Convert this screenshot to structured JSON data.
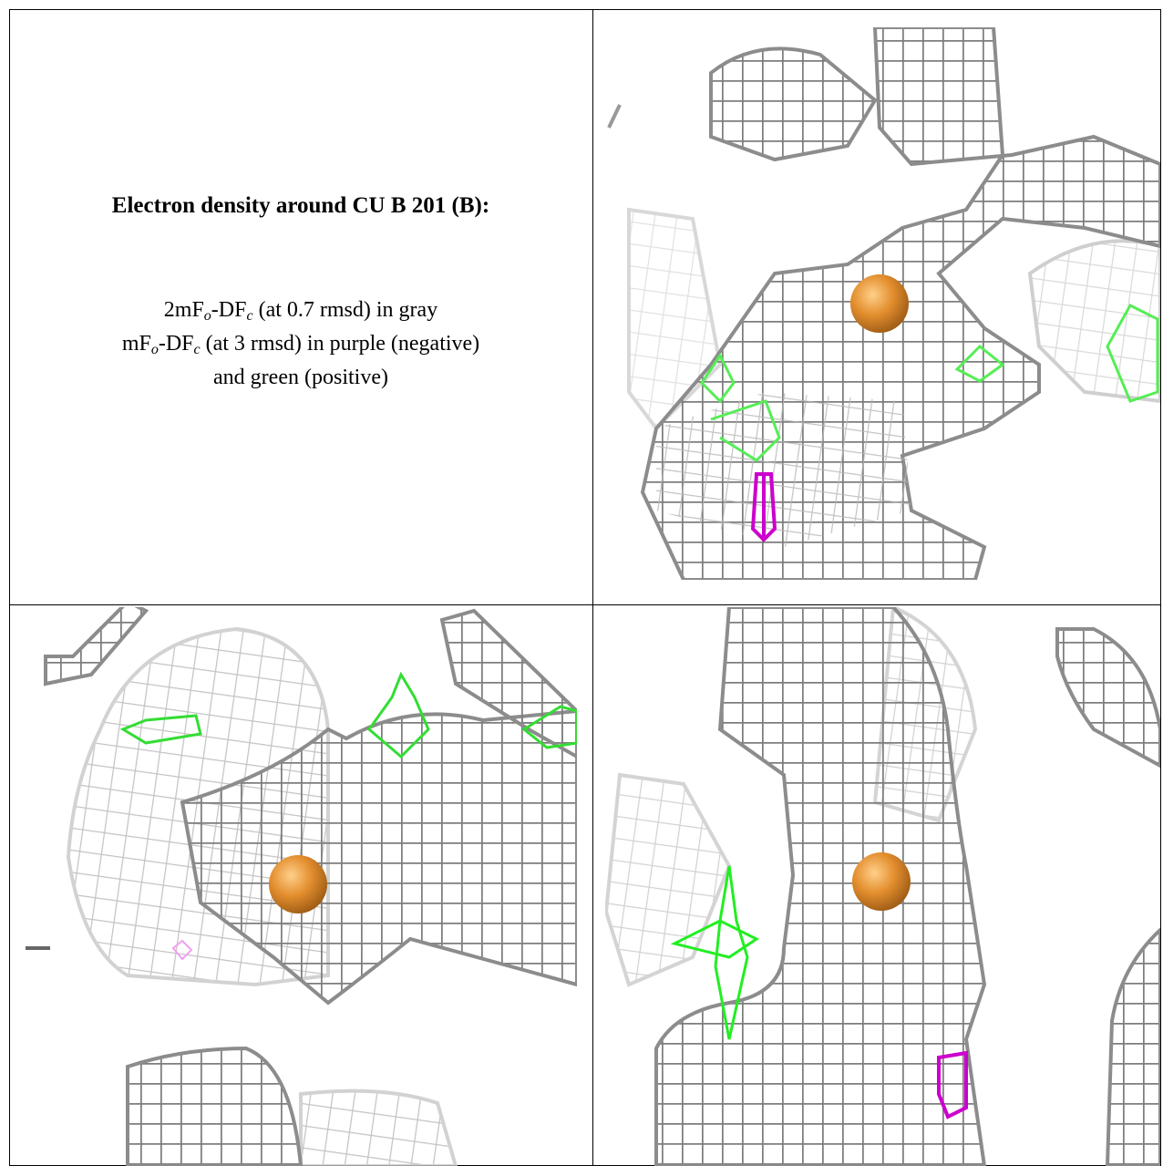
{
  "document": {
    "title": "Electron density around CU B 201 (B):",
    "description": [
      {
        "parts": [
          "2mF",
          "o",
          "-DF",
          "c",
          " (at 0.7 rmsd) in gray"
        ]
      },
      {
        "parts": [
          "mF",
          "o",
          "-DF",
          "c",
          " (at 3 rmsd) in purple (negative)"
        ]
      },
      {
        "parts": [
          "and green (positive)"
        ]
      }
    ]
  }
}
